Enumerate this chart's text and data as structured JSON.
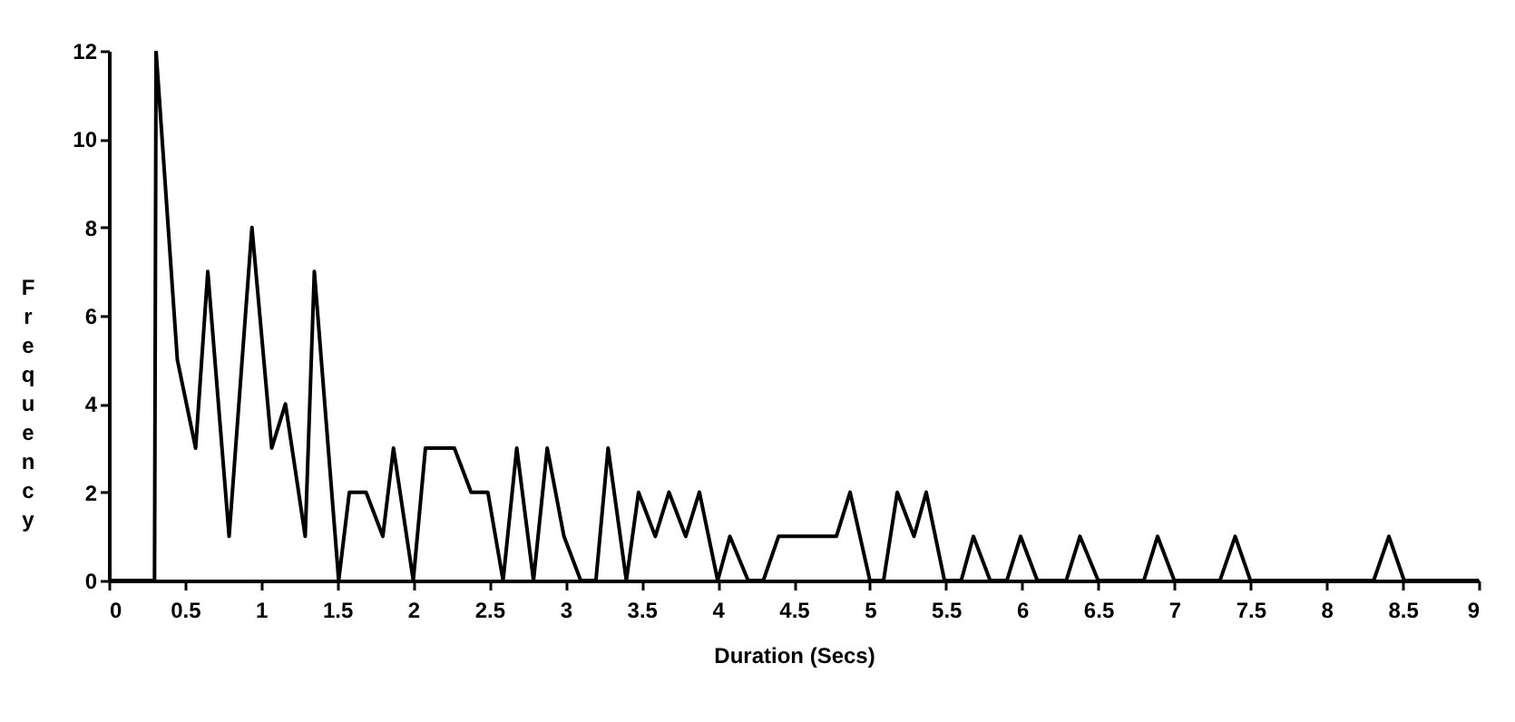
{
  "chart_data": {
    "type": "line",
    "xlabel": "Duration (Secs)",
    "ylabel": "Frequency",
    "x": [
      0,
      0.3,
      0.31,
      0.45,
      0.57,
      0.65,
      0.79,
      0.94,
      1.07,
      1.16,
      1.29,
      1.35,
      1.51,
      1.58,
      1.69,
      1.8,
      1.87,
      2.0,
      2.08,
      2.27,
      2.38,
      2.49,
      2.59,
      2.68,
      2.79,
      2.88,
      2.99,
      3.1,
      3.2,
      3.28,
      3.4,
      3.48,
      3.59,
      3.68,
      3.79,
      3.88,
      4.0,
      4.08,
      4.2,
      4.3,
      4.4,
      4.78,
      4.87,
      5.0,
      5.09,
      5.18,
      5.29,
      5.37,
      5.49,
      5.6,
      5.68,
      5.79,
      5.9,
      5.99,
      6.1,
      6.29,
      6.38,
      6.5,
      6.8,
      6.89,
      7.0,
      7.3,
      7.4,
      7.5,
      8.31,
      8.41,
      8.51,
      9
    ],
    "series": [
      {
        "color": "#000000",
        "values": [
          0,
          0,
          12,
          5,
          3,
          7,
          1,
          8,
          3,
          4,
          1,
          7,
          0,
          2,
          2,
          1,
          3,
          0,
          3,
          3,
          2,
          2,
          0,
          3,
          0,
          3,
          1,
          0,
          0,
          3,
          0,
          2,
          1,
          2,
          1,
          2,
          0,
          1,
          0,
          0,
          1,
          1,
          2,
          0,
          0,
          2,
          1,
          2,
          0,
          0,
          1,
          0,
          0,
          1,
          0,
          0,
          1,
          0,
          0,
          1,
          0,
          0,
          1,
          0,
          0,
          1,
          0,
          0
        ]
      }
    ],
    "xlim": [
      0,
      9
    ],
    "xticks": [
      0,
      0.5,
      1,
      1.5,
      2,
      2.5,
      3,
      3.5,
      4,
      4.5,
      5,
      5.5,
      6,
      6.5,
      7,
      7.5,
      8,
      8.5,
      9
    ],
    "ylim": [
      0,
      12
    ],
    "yticks": [
      0,
      2,
      4,
      6,
      8,
      10,
      12
    ],
    "grid": false,
    "marker": "none",
    "line_style": "solid"
  }
}
